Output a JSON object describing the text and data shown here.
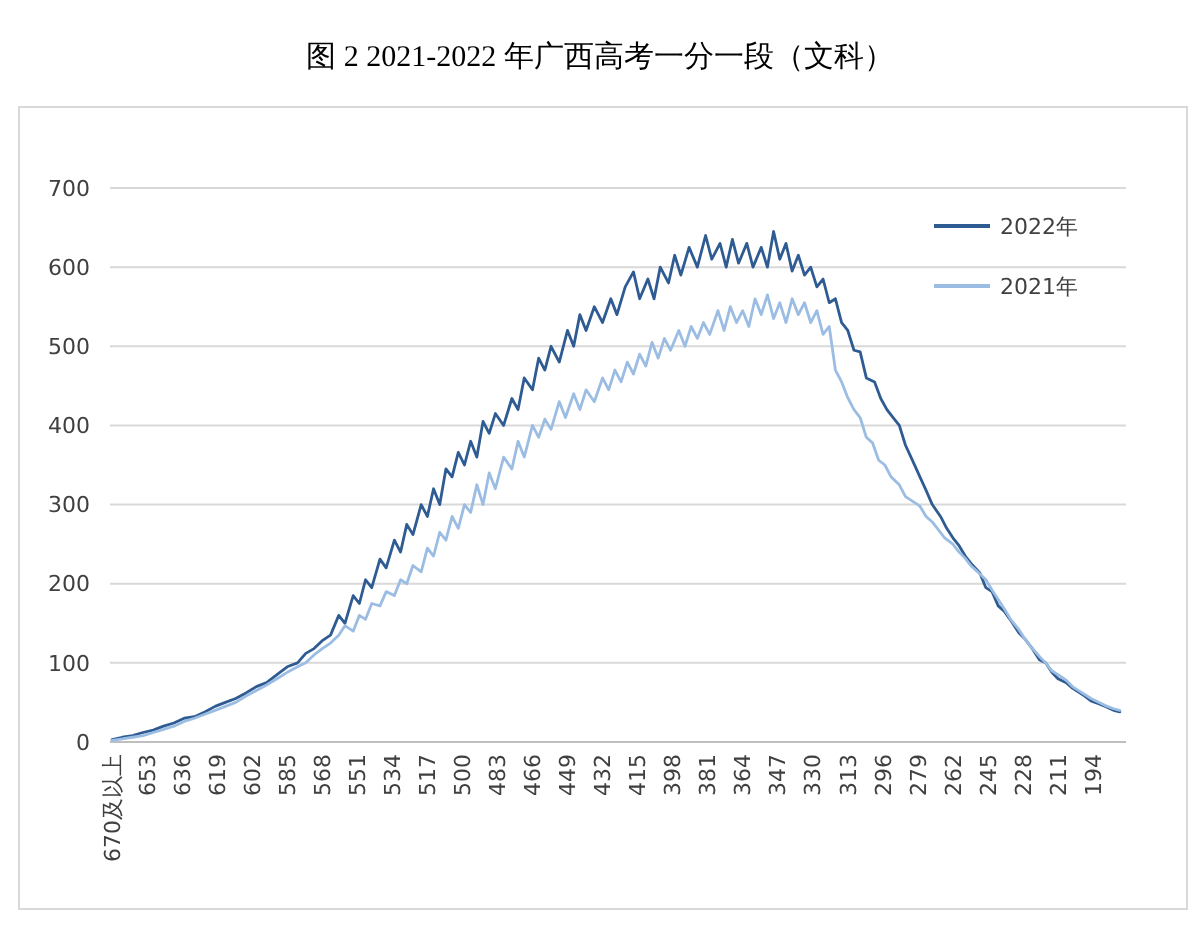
{
  "chart_data": {
    "type": "line",
    "title": "图 2 2021-2022 年广西高考一分一段（文科）",
    "xlim": [
      671,
      178
    ],
    "xticks": [
      {
        "value": 670,
        "label": "670及以上"
      },
      653,
      636,
      619,
      602,
      585,
      568,
      551,
      534,
      517,
      500,
      483,
      466,
      449,
      432,
      415,
      398,
      381,
      364,
      347,
      330,
      313,
      296,
      279,
      262,
      245,
      228,
      211,
      194
    ],
    "ylim": [
      0,
      700
    ],
    "yticks": [
      0,
      100,
      200,
      300,
      400,
      500,
      600,
      700
    ],
    "grid": "y",
    "legend": "top right",
    "series": [
      {
        "name": "2022年",
        "color": "#2f5b93",
        "x": [
          670,
          665,
          660,
          655,
          650,
          645,
          640,
          635,
          630,
          625,
          620,
          615,
          610,
          605,
          600,
          595,
          590,
          585,
          580,
          576,
          572,
          568,
          564,
          560,
          557,
          553,
          550,
          547,
          544,
          540,
          537,
          533,
          530,
          527,
          524,
          520,
          517,
          514,
          511,
          508,
          505,
          502,
          499,
          496,
          493,
          490,
          487,
          484,
          480,
          476,
          473,
          470,
          466,
          463,
          460,
          457,
          453,
          449,
          446,
          443,
          440,
          436,
          432,
          428,
          425,
          421,
          417,
          414,
          410,
          407,
          404,
          400,
          397,
          394,
          390,
          386,
          382,
          379,
          375,
          372,
          369,
          366,
          362,
          359,
          355,
          352,
          349,
          346,
          343,
          340,
          337,
          334,
          331,
          328,
          325,
          322,
          319,
          316,
          313,
          310,
          307,
          304,
          300,
          297,
          294,
          291,
          288,
          285,
          282,
          278,
          275,
          272,
          268,
          265,
          262,
          259,
          256,
          253,
          249,
          246,
          243,
          240,
          237,
          233,
          230,
          227,
          224,
          220,
          217,
          214,
          211,
          207,
          204,
          201,
          198,
          195,
          191,
          188,
          184,
          181
        ],
        "values": [
          3,
          6,
          8,
          12,
          15,
          20,
          24,
          30,
          32,
          38,
          45,
          50,
          55,
          62,
          70,
          75,
          85,
          95,
          100,
          112,
          118,
          128,
          135,
          160,
          150,
          185,
          175,
          205,
          195,
          231,
          220,
          255,
          240,
          275,
          262,
          300,
          285,
          320,
          300,
          345,
          335,
          366,
          350,
          380,
          360,
          405,
          390,
          415,
          400,
          434,
          420,
          460,
          445,
          485,
          470,
          500,
          480,
          520,
          500,
          540,
          520,
          550,
          530,
          560,
          540,
          575,
          594,
          560,
          585,
          560,
          600,
          580,
          615,
          590,
          625,
          600,
          640,
          610,
          630,
          600,
          635,
          605,
          630,
          600,
          625,
          600,
          645,
          610,
          630,
          595,
          615,
          590,
          600,
          575,
          585,
          555,
          560,
          530,
          520,
          495,
          493,
          460,
          455,
          434,
          420,
          410,
          400,
          375,
          358,
          335,
          318,
          300,
          285,
          270,
          258,
          248,
          235,
          225,
          214,
          195,
          190,
          172,
          165,
          150,
          138,
          130,
          120,
          104,
          100,
          88,
          80,
          75,
          68,
          63,
          58,
          52,
          48,
          45,
          40,
          38
        ]
      },
      {
        "name": "2021年",
        "color": "#9cbde3",
        "x": [
          670,
          665,
          660,
          655,
          650,
          645,
          640,
          635,
          630,
          625,
          620,
          615,
          610,
          605,
          600,
          595,
          590,
          585,
          580,
          576,
          572,
          568,
          564,
          560,
          557,
          553,
          550,
          547,
          544,
          540,
          537,
          533,
          530,
          527,
          524,
          520,
          517,
          514,
          511,
          508,
          505,
          502,
          499,
          496,
          493,
          490,
          487,
          484,
          480,
          476,
          473,
          470,
          466,
          463,
          460,
          457,
          453,
          450,
          446,
          443,
          440,
          436,
          432,
          429,
          426,
          423,
          420,
          417,
          414,
          411,
          408,
          405,
          402,
          399,
          395,
          392,
          389,
          386,
          383,
          380,
          376,
          373,
          370,
          367,
          364,
          361,
          358,
          355,
          352,
          349,
          346,
          343,
          340,
          337,
          334,
          331,
          328,
          325,
          322,
          319,
          316,
          313,
          310,
          307,
          304,
          301,
          298,
          295,
          292,
          288,
          285,
          282,
          278,
          275,
          272,
          269,
          266,
          262,
          259,
          256,
          253,
          250,
          246,
          243,
          240,
          237,
          234,
          230,
          227,
          224,
          220,
          217,
          214,
          211,
          207,
          204,
          201,
          198,
          195,
          191,
          188,
          184,
          181
        ],
        "values": [
          2,
          4,
          6,
          8,
          12,
          16,
          20,
          26,
          30,
          35,
          40,
          45,
          50,
          58,
          65,
          72,
          80,
          88,
          95,
          100,
          110,
          118,
          125,
          135,
          147,
          140,
          160,
          155,
          175,
          172,
          190,
          185,
          205,
          200,
          223,
          215,
          245,
          235,
          265,
          255,
          285,
          270,
          300,
          290,
          325,
          300,
          340,
          320,
          360,
          345,
          380,
          360,
          400,
          385,
          408,
          395,
          430,
          410,
          440,
          420,
          445,
          430,
          460,
          445,
          470,
          455,
          480,
          465,
          490,
          475,
          505,
          485,
          510,
          495,
          520,
          500,
          525,
          510,
          530,
          515,
          545,
          520,
          550,
          530,
          545,
          525,
          560,
          540,
          565,
          535,
          555,
          530,
          560,
          540,
          555,
          530,
          545,
          515,
          525,
          470,
          455,
          435,
          420,
          410,
          385,
          378,
          356,
          350,
          335,
          325,
          310,
          305,
          298,
          285,
          278,
          268,
          258,
          250,
          240,
          232,
          222,
          215,
          205,
          192,
          180,
          168,
          155,
          142,
          130,
          120,
          108,
          100,
          90,
          85,
          78,
          70,
          65,
          60,
          55,
          50,
          46,
          42,
          40
        ]
      }
    ]
  }
}
